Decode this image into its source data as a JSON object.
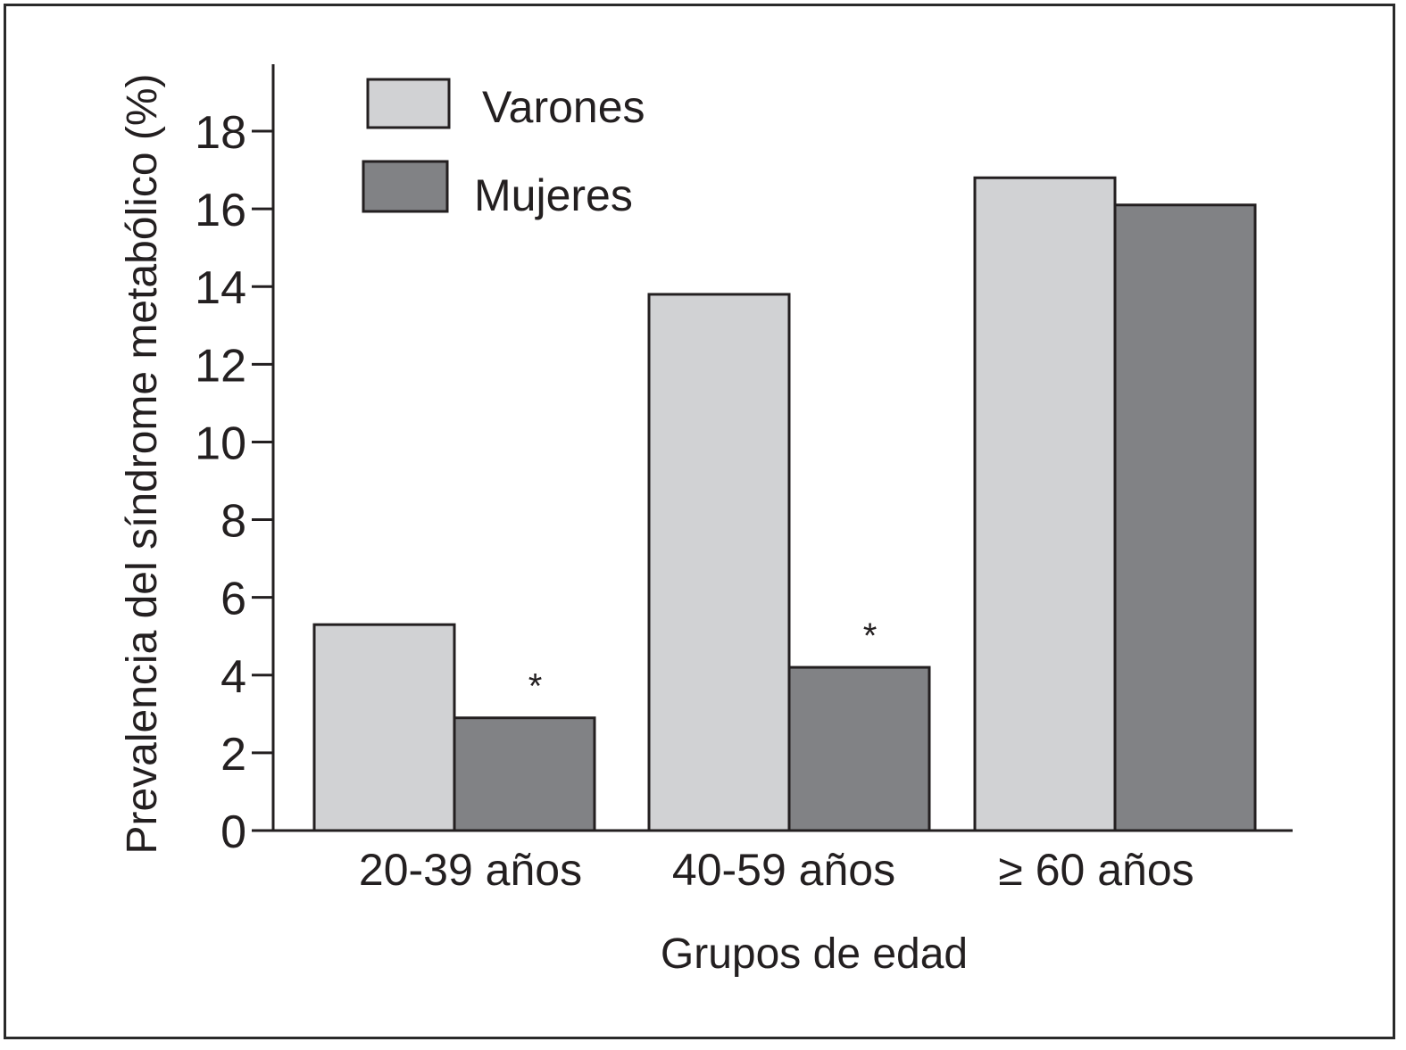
{
  "chart_data": {
    "type": "bar",
    "xlabel": "Grupos de edad",
    "ylabel": "Prevalencia del síndrome metabólico (%)",
    "ylim": [
      0,
      20
    ],
    "yticks": [
      "0",
      "2",
      "4",
      "6",
      "8",
      "10",
      "12",
      "14",
      "16",
      "18"
    ],
    "categories": [
      "20-39 años",
      "40-59 años",
      "≥ 60 años"
    ],
    "series": [
      {
        "name": "Varones",
        "color": "#d1d2d4",
        "values": [
          5.3,
          13.8,
          16.8
        ],
        "annotations": [
          "",
          "",
          ""
        ]
      },
      {
        "name": "Mujeres",
        "color": "#818285",
        "values": [
          2.9,
          4.2,
          16.1
        ],
        "annotations": [
          "*",
          "*",
          ""
        ]
      }
    ],
    "legend_position": "top-left",
    "grid": false
  }
}
